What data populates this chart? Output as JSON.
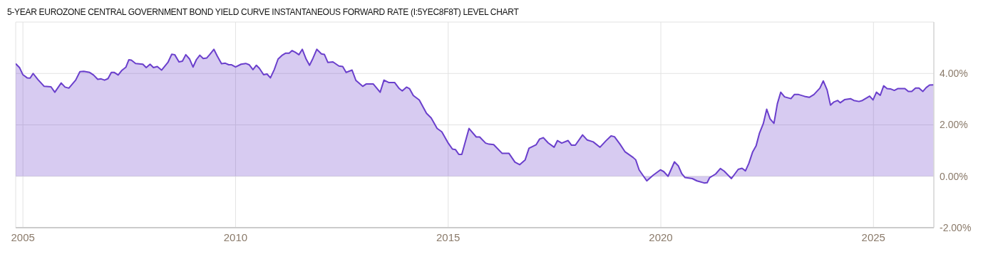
{
  "chart_data": {
    "type": "area",
    "title": "5-YEAR EUROZONE CENTRAL GOVERNMENT BOND YIELD CURVE INSTANTANEOUS FORWARD RATE (I:5YEC8F8T) LEVEL CHART",
    "x": [
      2004.83,
      2004.92,
      2005.0,
      2005.1,
      2005.17,
      2005.24,
      2005.35,
      2005.5,
      2005.66,
      2005.75,
      2005.9,
      2005.99,
      2006.08,
      2006.24,
      2006.34,
      2006.43,
      2006.57,
      2006.66,
      2006.76,
      2006.84,
      2006.92,
      2007.0,
      2007.08,
      2007.15,
      2007.24,
      2007.32,
      2007.42,
      2007.49,
      2007.55,
      2007.65,
      2007.82,
      2007.9,
      2007.99,
      2008.07,
      2008.16,
      2008.26,
      2008.41,
      2008.5,
      2008.57,
      2008.67,
      2008.75,
      2008.83,
      2008.92,
      2009.0,
      2009.08,
      2009.16,
      2009.24,
      2009.32,
      2009.39,
      2009.49,
      2009.57,
      2009.67,
      2009.76,
      2009.84,
      2009.9,
      2010.0,
      2010.13,
      2010.24,
      2010.32,
      2010.41,
      2010.49,
      2010.56,
      2010.66,
      2010.74,
      2010.82,
      2010.91,
      2011.0,
      2011.09,
      2011.18,
      2011.26,
      2011.33,
      2011.41,
      2011.49,
      2011.57,
      2011.66,
      2011.74,
      2011.82,
      2011.91,
      2012.02,
      2012.09,
      2012.17,
      2012.29,
      2012.43,
      2012.52,
      2012.6,
      2012.74,
      2012.83,
      2012.99,
      2013.07,
      2013.24,
      2013.4,
      2013.49,
      2013.6,
      2013.74,
      2013.85,
      2013.92,
      2014.02,
      2014.09,
      2014.18,
      2014.32,
      2014.49,
      2014.6,
      2014.74,
      2014.85,
      2014.99,
      2015.1,
      2015.17,
      2015.25,
      2015.32,
      2015.49,
      2015.66,
      2015.74,
      2015.88,
      2015.96,
      2016.07,
      2016.27,
      2016.43,
      2016.57,
      2016.68,
      2016.81,
      2016.9,
      2017.07,
      2017.15,
      2017.24,
      2017.35,
      2017.49,
      2017.57,
      2017.67,
      2017.82,
      2017.9,
      2017.99,
      2018.16,
      2018.27,
      2018.41,
      2018.57,
      2018.71,
      2018.83,
      2018.91,
      2019.04,
      2019.16,
      2019.35,
      2019.41,
      2019.49,
      2019.67,
      2019.82,
      2019.99,
      2020.07,
      2020.17,
      2020.32,
      2020.41,
      2020.49,
      2020.57,
      2020.74,
      2020.85,
      2021.02,
      2021.09,
      2021.15,
      2021.29,
      2021.4,
      2021.49,
      2021.66,
      2021.82,
      2021.91,
      2021.99,
      2022.07,
      2022.16,
      2022.24,
      2022.32,
      2022.41,
      2022.49,
      2022.57,
      2022.66,
      2022.74,
      2022.82,
      2022.91,
      2023.06,
      2023.14,
      2023.24,
      2023.38,
      2023.49,
      2023.6,
      2023.74,
      2023.82,
      2023.91,
      2023.99,
      2024.07,
      2024.16,
      2024.22,
      2024.32,
      2024.46,
      2024.54,
      2024.66,
      2024.74,
      2024.91,
      2024.99,
      2025.07,
      2025.16,
      2025.24,
      2025.32,
      2025.4,
      2025.49,
      2025.57,
      2025.74,
      2025.82,
      2025.9,
      2025.99,
      2026.07,
      2026.16,
      2026.24,
      2026.32,
      2026.41
    ],
    "series": [
      {
        "color": "#6a3fcc",
        "values": [
          4.38,
          4.23,
          3.95,
          3.83,
          3.82,
          4.0,
          3.77,
          3.5,
          3.48,
          3.27,
          3.63,
          3.47,
          3.43,
          3.74,
          4.07,
          4.08,
          4.04,
          3.94,
          3.77,
          3.79,
          3.74,
          3.8,
          4.04,
          4.04,
          3.94,
          4.11,
          4.24,
          4.53,
          4.52,
          4.39,
          4.36,
          4.23,
          4.36,
          4.23,
          4.27,
          4.13,
          4.43,
          4.75,
          4.73,
          4.45,
          4.48,
          4.73,
          4.56,
          4.25,
          4.54,
          4.71,
          4.58,
          4.6,
          4.73,
          4.94,
          4.68,
          4.38,
          4.4,
          4.34,
          4.34,
          4.25,
          4.36,
          4.39,
          4.34,
          4.15,
          4.32,
          4.2,
          3.95,
          3.98,
          3.83,
          4.15,
          4.56,
          4.7,
          4.79,
          4.79,
          4.89,
          4.82,
          4.73,
          4.94,
          4.56,
          4.32,
          4.59,
          4.94,
          4.76,
          4.74,
          4.43,
          4.45,
          4.29,
          4.27,
          4.04,
          4.13,
          3.73,
          3.5,
          3.59,
          3.59,
          3.27,
          3.74,
          3.65,
          3.65,
          3.41,
          3.32,
          3.47,
          3.41,
          3.14,
          2.97,
          2.45,
          2.27,
          1.86,
          1.73,
          1.32,
          1.06,
          1.04,
          0.85,
          0.85,
          1.86,
          1.53,
          1.53,
          1.29,
          1.25,
          1.23,
          0.89,
          0.89,
          0.55,
          0.45,
          0.64,
          1.09,
          1.23,
          1.45,
          1.5,
          1.3,
          1.13,
          1.39,
          1.29,
          1.39,
          1.21,
          1.21,
          1.61,
          1.41,
          1.34,
          1.13,
          1.38,
          1.57,
          1.54,
          1.25,
          0.95,
          0.73,
          0.64,
          0.25,
          -0.18,
          0.04,
          0.25,
          0.18,
          0.0,
          0.56,
          0.41,
          0.11,
          -0.05,
          -0.09,
          -0.18,
          -0.26,
          -0.25,
          -0.05,
          0.09,
          0.3,
          0.2,
          -0.09,
          0.27,
          0.31,
          0.21,
          0.5,
          0.95,
          1.18,
          1.68,
          2.05,
          2.61,
          2.23,
          2.06,
          2.82,
          3.27,
          3.09,
          3.02,
          3.18,
          3.18,
          3.11,
          3.07,
          3.18,
          3.43,
          3.71,
          3.36,
          2.77,
          2.89,
          2.95,
          2.86,
          2.98,
          3.02,
          2.95,
          2.91,
          2.95,
          3.12,
          2.97,
          3.27,
          3.15,
          3.52,
          3.41,
          3.4,
          3.34,
          3.41,
          3.41,
          3.3,
          3.3,
          3.43,
          3.43,
          3.3,
          3.45,
          3.55,
          3.56
        ]
      }
    ],
    "xlim": [
      2004.83,
      2026.42
    ],
    "xticks": [
      2005,
      2010,
      2015,
      2020,
      2025
    ],
    "ylim": [
      -2,
      6
    ],
    "yticks": [
      {
        "value": -2,
        "label": "-2.00%"
      },
      {
        "value": 0,
        "label": "0.00%"
      },
      {
        "value": 2,
        "label": "2.00%"
      },
      {
        "value": 4,
        "label": "4.00%"
      }
    ],
    "grid": true
  }
}
